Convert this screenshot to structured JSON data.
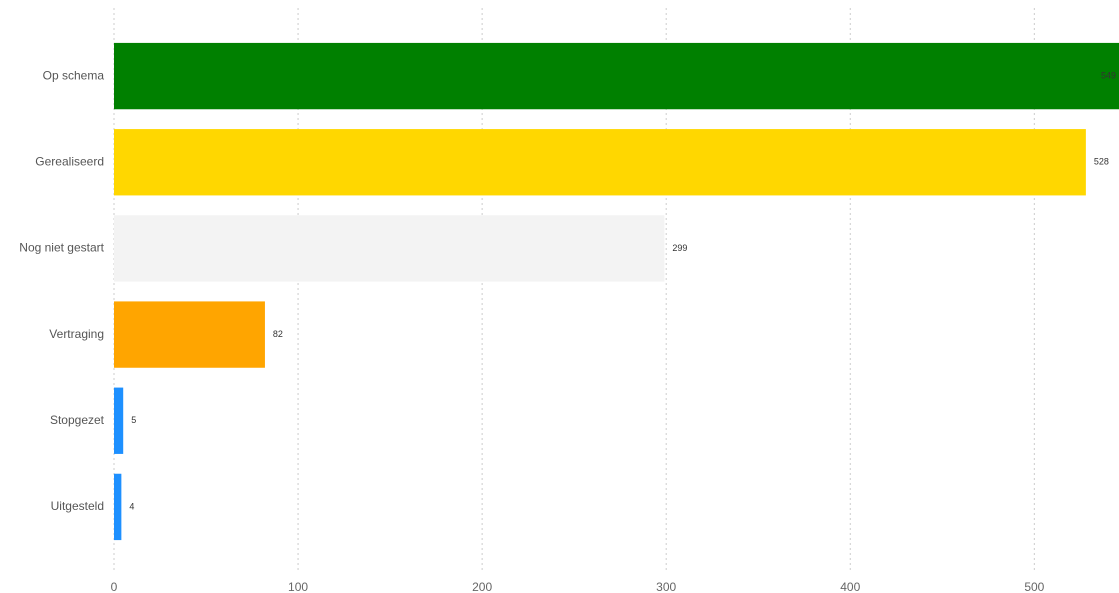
{
  "chart_data": {
    "type": "hbar",
    "categories": [
      "Op schema",
      "Gerealiseerd",
      "Nog niet gestart",
      "Vertraging",
      "Stopgezet",
      "Uitgesteld"
    ],
    "values": [
      549,
      528,
      299,
      82,
      5,
      4
    ],
    "colors": [
      "#008000",
      "#ffd700",
      "#f3f3f3",
      "#ffa500",
      "#1e90ff",
      "#1e90ff"
    ],
    "xlim": [
      0,
      546
    ],
    "xticks": [
      0,
      100,
      200,
      300,
      400,
      500
    ],
    "grid": true
  }
}
